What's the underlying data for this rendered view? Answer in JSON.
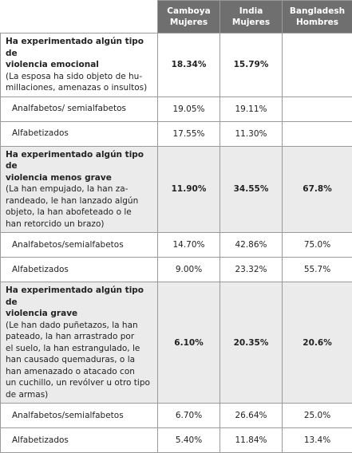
{
  "table": {
    "header": [
      "Camboya Mujeres",
      "India Mujeres",
      "Bangladesh Hombres"
    ],
    "sections": [
      {
        "title": [
          "Ha experimentado algún tipo de",
          "violencia emocional"
        ],
        "description": [
          "(La esposa ha sido objeto de hu-",
          "millaciones, amenazas o insultos)"
        ],
        "values": [
          "18.34%",
          "15.79%",
          null
        ],
        "rows": [
          {
            "label": "Analfabetos/ semialfabetos",
            "values": [
              "19.05%",
              "19.11%",
              null
            ]
          },
          {
            "label": "Alfabetizados",
            "values": [
              "17.55%",
              "11.30%",
              null
            ]
          }
        ]
      },
      {
        "title": [
          "Ha experimentado algún tipo de",
          "violencia menos grave"
        ],
        "description": [
          "(La han empujado, la han za-",
          "randeado, le han lanzado algún",
          "objeto, la han abofeteado o le",
          "han retorcido un brazo)"
        ],
        "values": [
          "11.90%",
          "34.55%",
          "67.8%"
        ],
        "rows": [
          {
            "label": "Analfabetos/semialfabetos",
            "values": [
              "14.70%",
              "42.86%",
              "75.0%"
            ]
          },
          {
            "label": "Alfabetizados",
            "values": [
              "9.00%",
              "23.32%",
              "55.7%"
            ]
          }
        ]
      },
      {
        "title": [
          "Ha experimentado algún tipo de",
          "violencia grave"
        ],
        "description": [
          "(Le han dado puñetazos, la han",
          "pateado, la han arrastrado por",
          "el suelo, la han estrangulado, le",
          "han causado quemaduras, o la",
          "han amenazado o atacado con",
          "un cuchillo, un revólver u otro tipo",
          "de armas)"
        ],
        "values": [
          "6.10%",
          "20.35%",
          "20.6%"
        ],
        "rows": [
          {
            "label": "Analfabetos/semialfabetos",
            "values": [
              "6.70%",
              "26.64%",
              "25.0%"
            ]
          },
          {
            "label": "Alfabetizados",
            "values": [
              "5.40%",
              "11.84%",
              "13.4%"
            ]
          }
        ]
      }
    ]
  }
}
